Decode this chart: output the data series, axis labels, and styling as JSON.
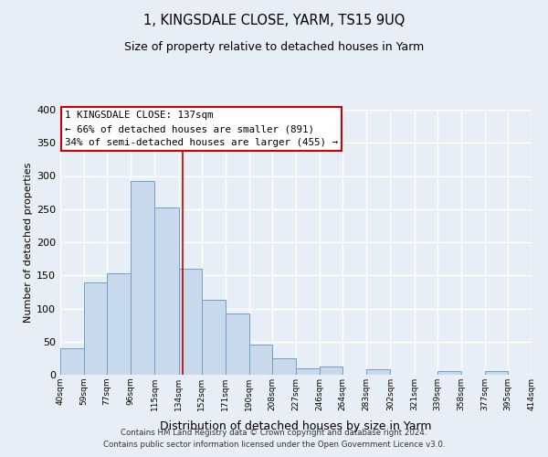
{
  "title": "1, KINGSDALE CLOSE, YARM, TS15 9UQ",
  "subtitle": "Size of property relative to detached houses in Yarm",
  "xlabel": "Distribution of detached houses by size in Yarm",
  "ylabel": "Number of detached properties",
  "bar_color": "#c9d9ec",
  "bar_edge_color": "#6fa0c8",
  "background_color": "#e8eef5",
  "plot_bg_color": "#e8eef5",
  "grid_color": "#ffffff",
  "vline_x": 137,
  "vline_color": "#cc0000",
  "bin_edges": [
    40,
    59,
    77,
    96,
    115,
    134,
    152,
    171,
    190,
    208,
    227,
    246,
    264,
    283,
    302,
    321,
    339,
    358,
    377,
    395,
    414
  ],
  "bin_heights": [
    40,
    140,
    153,
    293,
    253,
    160,
    113,
    92,
    46,
    25,
    10,
    13,
    0,
    8,
    0,
    0,
    5,
    0,
    5,
    0
  ],
  "tick_labels": [
    "40sqm",
    "59sqm",
    "77sqm",
    "96sqm",
    "115sqm",
    "134sqm",
    "152sqm",
    "171sqm",
    "190sqm",
    "208sqm",
    "227sqm",
    "246sqm",
    "264sqm",
    "283sqm",
    "302sqm",
    "321sqm",
    "339sqm",
    "358sqm",
    "377sqm",
    "395sqm",
    "414sqm"
  ],
  "ylim": [
    0,
    400
  ],
  "yticks": [
    0,
    50,
    100,
    150,
    200,
    250,
    300,
    350,
    400
  ],
  "annotation_title": "1 KINGSDALE CLOSE: 137sqm",
  "annotation_line1": "← 66% of detached houses are smaller (891)",
  "annotation_line2": "34% of semi-detached houses are larger (455) →",
  "annotation_box_color": "#ffffff",
  "annotation_edge_color": "#cc0000",
  "footer1": "Contains HM Land Registry data © Crown copyright and database right 2024.",
  "footer2": "Contains public sector information licensed under the Open Government Licence v3.0."
}
